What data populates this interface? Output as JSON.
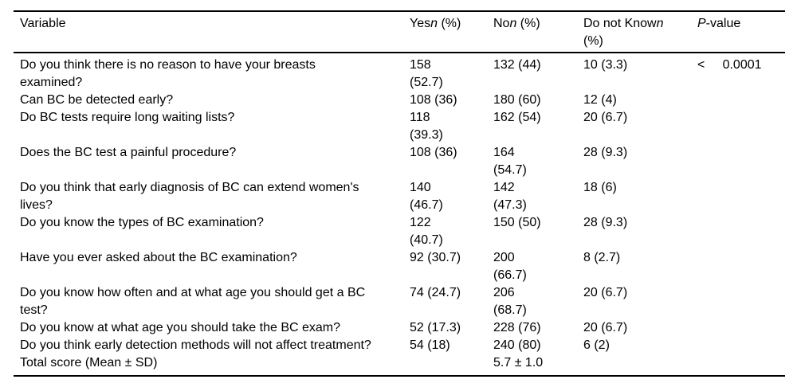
{
  "table": {
    "headers": {
      "variable": {
        "pre": "Variable",
        "it": "",
        "post": ""
      },
      "yes": {
        "pre": "Yes",
        "it": "n",
        "post": " (%)"
      },
      "no": {
        "pre": "No",
        "it": "n",
        "post": " (%)"
      },
      "dont_know": {
        "pre": "Do not Know",
        "it": "n",
        "post": "\n(%)"
      },
      "p": {
        "pre": "",
        "it": "P",
        "post": "-value"
      }
    },
    "rows": [
      {
        "variable": "Do you think there is no reason to have your breasts\nexamined?",
        "yes": "158\n(52.7)",
        "no": "132 (44)",
        "dont_know": "10 (3.3)",
        "p": "<     0.0001"
      },
      {
        "variable": "Can BC be detected early?",
        "yes": "108 (36)",
        "no": "180 (60)",
        "dont_know": "12 (4)",
        "p": ""
      },
      {
        "variable": "Do BC tests require long waiting lists?",
        "yes": "118\n(39.3)",
        "no": "162 (54)",
        "dont_know": "20 (6.7)",
        "p": ""
      },
      {
        "variable": "Does the BC test a painful procedure?",
        "yes": "108 (36)",
        "no": "164\n(54.7)",
        "dont_know": "28 (9.3)",
        "p": ""
      },
      {
        "variable": "Do you think that early diagnosis of BC can extend women's\nlives?",
        "yes": "140\n(46.7)",
        "no": "142\n(47.3)",
        "dont_know": "18 (6)",
        "p": ""
      },
      {
        "variable": "Do you know the types of BC examination?",
        "yes": "122\n(40.7)",
        "no": "150 (50)",
        "dont_know": "28 (9.3)",
        "p": ""
      },
      {
        "variable": "Have you ever asked about the BC examination?",
        "yes": "92 (30.7)",
        "no": "200\n(66.7)",
        "dont_know": "8 (2.7)",
        "p": ""
      },
      {
        "variable": "Do you know how often and at what age you should get a BC\ntest?",
        "yes": "74 (24.7)",
        "no": "206\n(68.7)",
        "dont_know": "20 (6.7)",
        "p": ""
      },
      {
        "variable": "Do you know at what age you should take the BC exam?",
        "yes": "52 (17.3)",
        "no": "228 (76)",
        "dont_know": "20 (6.7)",
        "p": ""
      },
      {
        "variable": "Do you think early detection methods will not affect treatment?",
        "yes": "54 (18)",
        "no": "240 (80)",
        "dont_know": "6 (2)",
        "p": ""
      },
      {
        "variable": "Total score (Mean ± SD)",
        "yes": "",
        "no": "5.7 ± 1.0",
        "dont_know": "",
        "p": ""
      }
    ]
  }
}
